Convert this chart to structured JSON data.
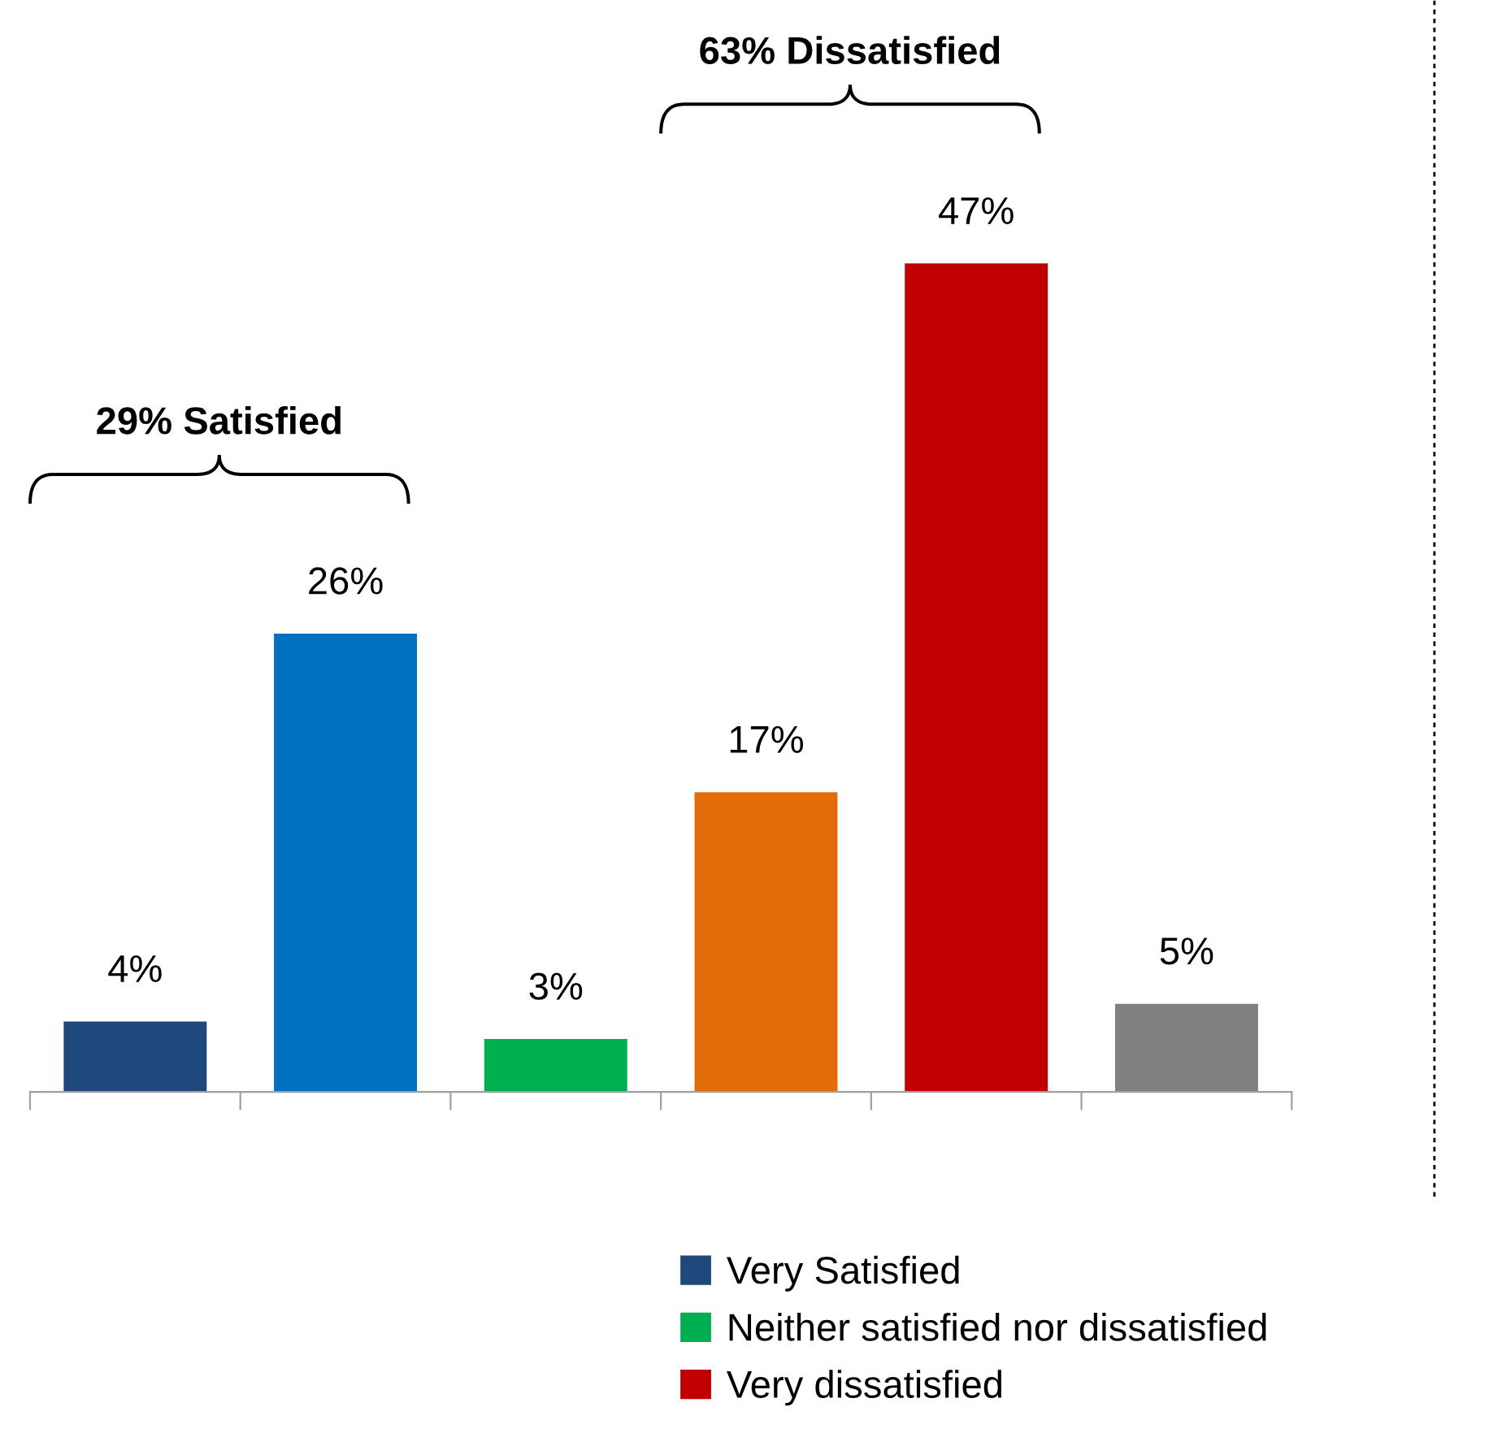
{
  "chart_data": {
    "type": "bar",
    "stacked": true,
    "categories": [
      null,
      null,
      null,
      null,
      null,
      null
    ],
    "series": [
      {
        "name": "Very Satisfied",
        "color": "#1f497d",
        "values": [
          4,
          0,
          0,
          0,
          0,
          0
        ],
        "value_labels": [
          "4%",
          null,
          null,
          null,
          null,
          null
        ]
      },
      {
        "color": "#0070c0",
        "values": [
          0,
          26,
          0,
          0,
          0,
          0
        ],
        "value_labels": [
          null,
          "26%",
          null,
          null,
          null,
          null
        ]
      },
      {
        "name": "Neither satisfied nor dissatisfied",
        "color": "#00b050",
        "values": [
          0,
          0,
          3,
          0,
          0,
          0
        ],
        "value_labels": [
          null,
          null,
          "3%",
          null,
          null,
          null
        ]
      },
      {
        "color": "#e36c0a",
        "values": [
          0,
          0,
          0,
          17,
          0,
          0
        ],
        "value_labels": [
          null,
          null,
          null,
          "17%",
          null,
          null
        ]
      },
      {
        "name": "Very dissatisfied",
        "color": "#c00000",
        "values": [
          0,
          0,
          0,
          0,
          47,
          0
        ],
        "value_labels": [
          null,
          null,
          null,
          null,
          "47%",
          null
        ]
      },
      {
        "color": "#808080",
        "values": [
          0,
          0,
          0,
          0,
          0,
          5
        ],
        "value_labels": [
          null,
          null,
          null,
          null,
          null,
          "5%"
        ]
      }
    ],
    "annotations": [
      "29% Satisfied",
      "63% Dissatisfied"
    ],
    "grid": false,
    "legend": "bottom"
  }
}
